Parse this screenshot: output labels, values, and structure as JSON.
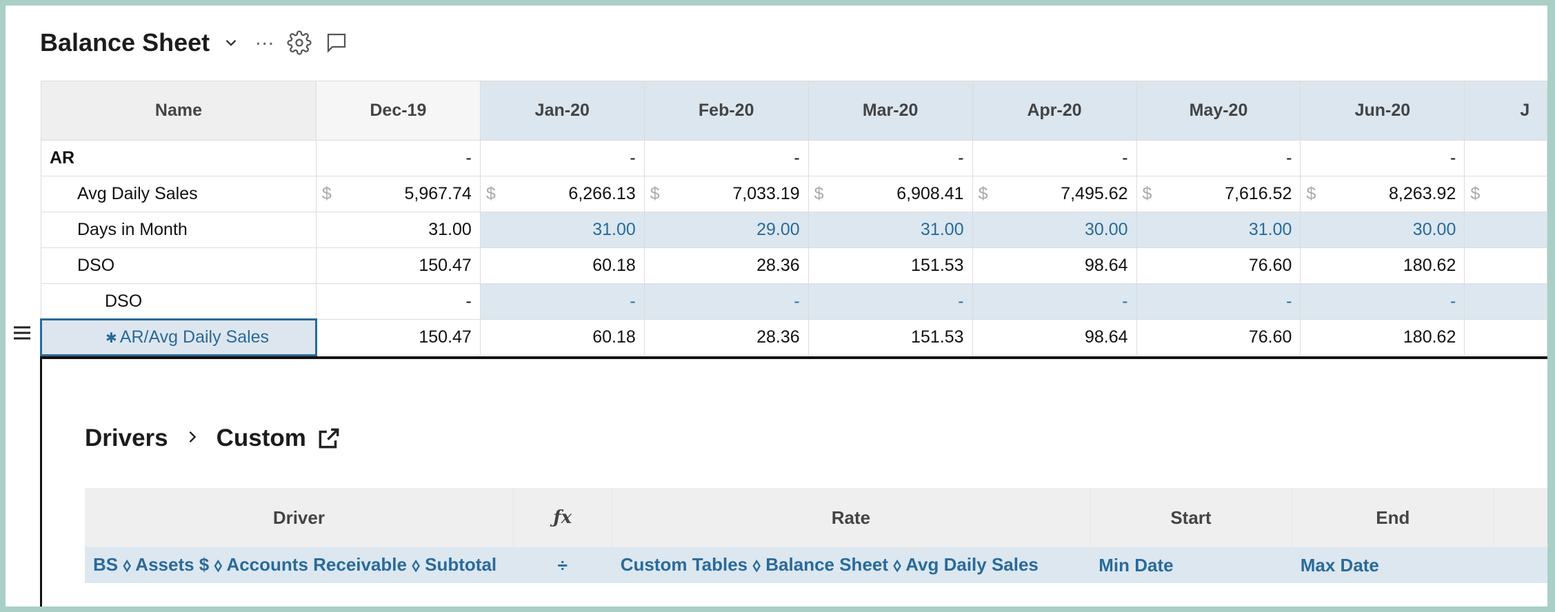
{
  "header": {
    "title": "Balance Sheet",
    "ellipsis": "..."
  },
  "grid": {
    "columns": {
      "name": "Name",
      "months": [
        "Dec-19",
        "Jan-20",
        "Feb-20",
        "Mar-20",
        "Apr-20",
        "May-20",
        "Jun-20",
        "J"
      ]
    },
    "rows": [
      {
        "name": "AR",
        "values": [
          "-",
          "-",
          "-",
          "-",
          "-",
          "-",
          "-",
          ""
        ]
      },
      {
        "name": "Avg Daily Sales",
        "currency": "$",
        "values": [
          "5,967.74",
          "6,266.13",
          "7,033.19",
          "6,908.41",
          "7,495.62",
          "7,616.52",
          "8,263.92",
          ""
        ]
      },
      {
        "name": "Days in Month",
        "values": [
          "31.00",
          "31.00",
          "29.00",
          "31.00",
          "30.00",
          "31.00",
          "30.00",
          ""
        ]
      },
      {
        "name": "DSO",
        "values": [
          "150.47",
          "60.18",
          "28.36",
          "151.53",
          "98.64",
          "76.60",
          "180.62",
          ""
        ]
      },
      {
        "name": "DSO",
        "values": [
          "-",
          "-",
          "-",
          "-",
          "-",
          "-",
          "-",
          ""
        ]
      },
      {
        "name": "AR/Avg Daily Sales",
        "values": [
          "150.47",
          "60.18",
          "28.36",
          "151.53",
          "98.64",
          "76.60",
          "180.62",
          ""
        ]
      }
    ]
  },
  "drivers": {
    "breadcrumb": [
      "Drivers",
      "Custom"
    ],
    "columns": {
      "driver": "Driver",
      "fx": "ƒx",
      "rate": "Rate",
      "start": "Start",
      "end": "End"
    },
    "row": {
      "driver": "BS ⬨ Assets $ ⬨ Accounts Receivable ⬨ Subtotal",
      "operator": "÷",
      "rate": "Custom Tables ⬨ Balance Sheet ⬨ Avg Daily Sales",
      "start": "Min Date",
      "end": "Max Date"
    }
  },
  "colors": {
    "accent": "#2a6a9a",
    "forecast_bg": "#dce7f0",
    "frame": "#a9cfc6"
  }
}
